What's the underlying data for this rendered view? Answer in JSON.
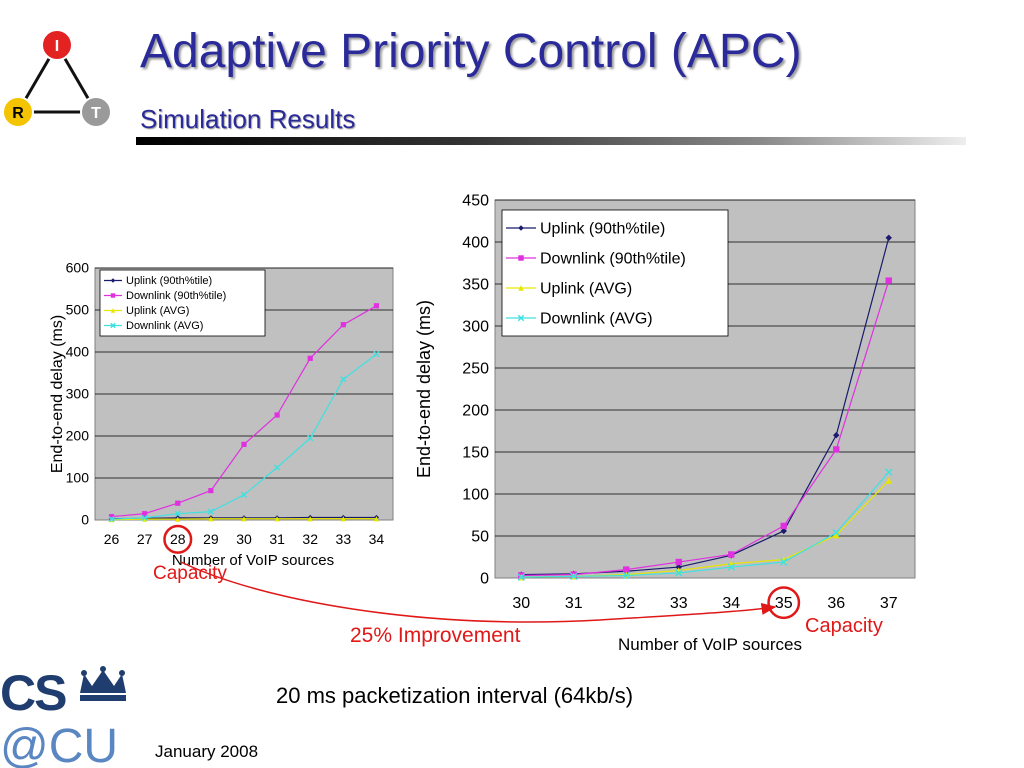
{
  "slide": {
    "title": "Adaptive Priority Control (APC)",
    "subtitle": "Simulation Results",
    "footer_caption": "20 ms packetization interval (64kb/s)",
    "date": "January 2008",
    "improvement_label": "25% Improvement",
    "capacity_label": "Capacity",
    "logo_nodes": [
      "I",
      "R",
      "T"
    ],
    "logo_text": "CS@CU",
    "accent_color": "#2a2a9a",
    "annotation_color": "#e01818"
  },
  "chart_data": [
    {
      "type": "line",
      "xlabel": "Number of VoIP sources",
      "ylabel": "End-to-end delay (ms)",
      "categories": [
        "26",
        "27",
        "28",
        "29",
        "30",
        "31",
        "32",
        "33",
        "34"
      ],
      "ylim": [
        0,
        600
      ],
      "yticks": [
        0,
        100,
        200,
        300,
        400,
        500,
        600
      ],
      "grid": true,
      "legend_position": "top-left",
      "highlight_category": "28",
      "series": [
        {
          "name": "Uplink (90th%tile)",
          "color": "#1a1a6e",
          "marker": "diamond",
          "values": [
            3,
            4,
            5,
            5,
            5,
            5,
            6,
            6,
            6
          ]
        },
        {
          "name": "Downlink (90th%tile)",
          "color": "#e030e0",
          "marker": "square",
          "values": [
            8,
            15,
            40,
            70,
            180,
            250,
            385,
            465,
            510
          ]
        },
        {
          "name": "Uplink (AVG)",
          "color": "#e6e600",
          "marker": "triangle",
          "values": [
            1,
            2,
            2,
            3,
            3,
            3,
            3,
            3,
            3
          ]
        },
        {
          "name": "Downlink (AVG)",
          "color": "#40e0e0",
          "marker": "cross",
          "values": [
            2,
            5,
            15,
            20,
            60,
            125,
            195,
            335,
            395
          ]
        }
      ]
    },
    {
      "type": "line",
      "xlabel": "Number of VoIP sources",
      "ylabel": "End-to-end delay (ms)",
      "categories": [
        "30",
        "31",
        "32",
        "33",
        "34",
        "35",
        "36",
        "37"
      ],
      "ylim": [
        0,
        450
      ],
      "yticks": [
        0,
        50,
        100,
        150,
        200,
        250,
        300,
        350,
        400,
        450
      ],
      "grid": true,
      "legend_position": "top-left",
      "highlight_category": "35",
      "series": [
        {
          "name": "Uplink (90th%tile)",
          "color": "#1a1a6e",
          "marker": "diamond",
          "values": [
            4,
            5,
            8,
            13,
            27,
            56,
            170,
            405
          ]
        },
        {
          "name": "Downlink (90th%tile)",
          "color": "#e030e0",
          "marker": "square",
          "values": [
            3,
            4,
            10,
            19,
            28,
            62,
            153,
            354
          ]
        },
        {
          "name": "Uplink (AVG)",
          "color": "#e6e600",
          "marker": "triangle",
          "values": [
            1,
            2,
            4,
            9,
            17,
            22,
            51,
            116
          ]
        },
        {
          "name": "Downlink (AVG)",
          "color": "#40e0e0",
          "marker": "cross",
          "values": [
            1,
            2,
            3,
            6,
            13,
            19,
            54,
            126
          ]
        }
      ]
    }
  ]
}
